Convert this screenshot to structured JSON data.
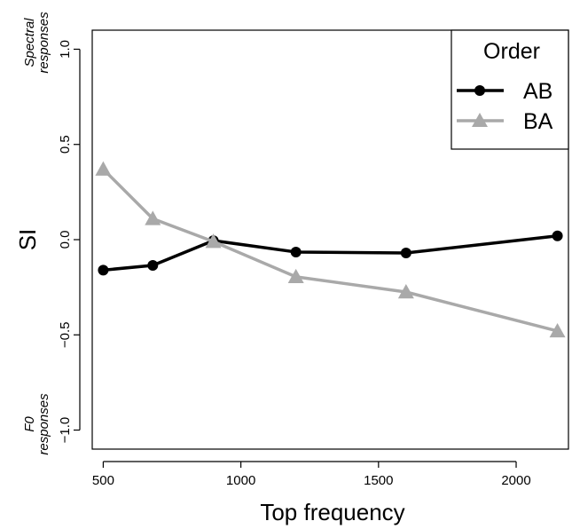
{
  "chart_data": {
    "type": "line",
    "xlabel": "Top frequency",
    "ylabel": "SI",
    "xlim": [
      460,
      2190
    ],
    "ylim": [
      -1.1,
      1.1
    ],
    "x_ticks": [
      500,
      1000,
      1500,
      2000
    ],
    "y_ticks": [
      -1.0,
      -0.5,
      0.0,
      0.5,
      1.0
    ],
    "x_tick_labels": [
      "500",
      "1000",
      "1500",
      "2000"
    ],
    "y_tick_labels": [
      "−1.0",
      "−0.5",
      "0.0",
      "0.5",
      "1.0"
    ],
    "y_top_note": [
      "Spectral",
      "responses"
    ],
    "y_bottom_note": [
      "F0",
      "responses"
    ],
    "grid": false,
    "legend": {
      "title": "Order",
      "position": "top-right"
    },
    "series": [
      {
        "name": "AB",
        "color": "#000000",
        "marker": "circle",
        "x": [
          500,
          680,
          900,
          1200,
          1600,
          2150
        ],
        "y": [
          -0.16,
          -0.135,
          -0.005,
          -0.065,
          -0.07,
          0.02
        ]
      },
      {
        "name": "BA",
        "color": "#a9a9a9",
        "marker": "triangle",
        "x": [
          500,
          680,
          900,
          1200,
          1600,
          2150
        ],
        "y": [
          0.37,
          0.11,
          -0.01,
          -0.195,
          -0.275,
          -0.48
        ]
      }
    ]
  }
}
